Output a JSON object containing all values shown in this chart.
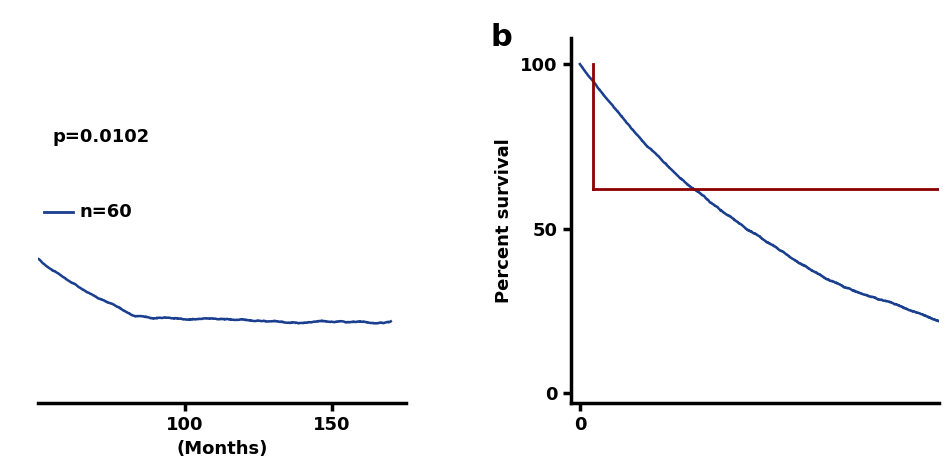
{
  "panel_b_label": "b",
  "ylabel": "Percent survival",
  "xlabel": "(Months)",
  "yticks": [
    0,
    50,
    100
  ],
  "xlim_b": [
    -2,
    80
  ],
  "ylim": [
    -3,
    108
  ],
  "p_value": "p=0.0102",
  "n_label": "n=60",
  "blue_color": "#1a3f8f",
  "red_color": "#8b0000",
  "median_line_y": 62,
  "median_drop_x": 3,
  "background_color": "#ffffff",
  "figsize": [
    9.48,
    4.74
  ],
  "dpi": 100,
  "xlim_a": [
    50,
    175
  ],
  "xticks_a": [
    100,
    150
  ],
  "xticklabel_a": [
    "100",
    "150"
  ]
}
